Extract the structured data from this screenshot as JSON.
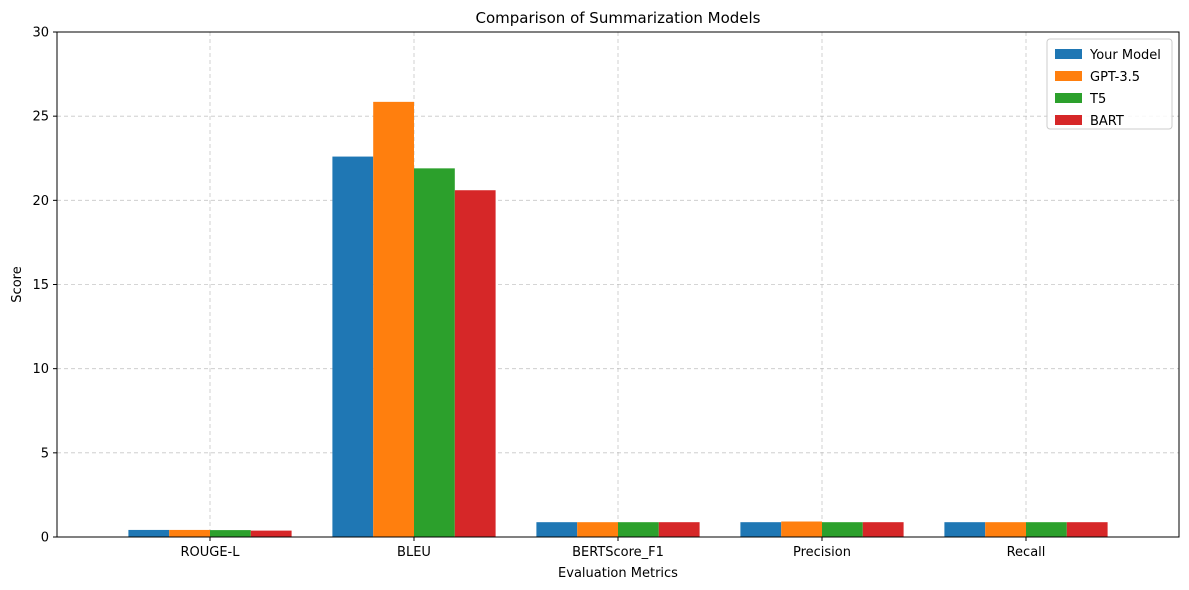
{
  "chart_data": {
    "type": "bar",
    "title": "Comparison of Summarization Models",
    "xlabel": "Evaluation Metrics",
    "ylabel": "Score",
    "categories": [
      "ROUGE-L",
      "BLEU",
      "BERTScore_F1",
      "Precision",
      "Recall"
    ],
    "ylim": [
      0,
      30
    ],
    "yticks": [
      0,
      5,
      10,
      15,
      20,
      25,
      30
    ],
    "grid": true,
    "legend_position": "top-right",
    "series": [
      {
        "name": "Your Model",
        "color": "#1f77b4",
        "values": [
          0.42,
          22.6,
          0.88,
          0.88,
          0.88
        ]
      },
      {
        "name": "GPT-3.5",
        "color": "#ff7f0e",
        "values": [
          0.42,
          25.85,
          0.88,
          0.92,
          0.88
        ]
      },
      {
        "name": "T5",
        "color": "#2ca02c",
        "values": [
          0.41,
          21.9,
          0.88,
          0.88,
          0.88
        ]
      },
      {
        "name": "BART",
        "color": "#d62728",
        "values": [
          0.38,
          20.6,
          0.88,
          0.88,
          0.88
        ]
      }
    ]
  }
}
